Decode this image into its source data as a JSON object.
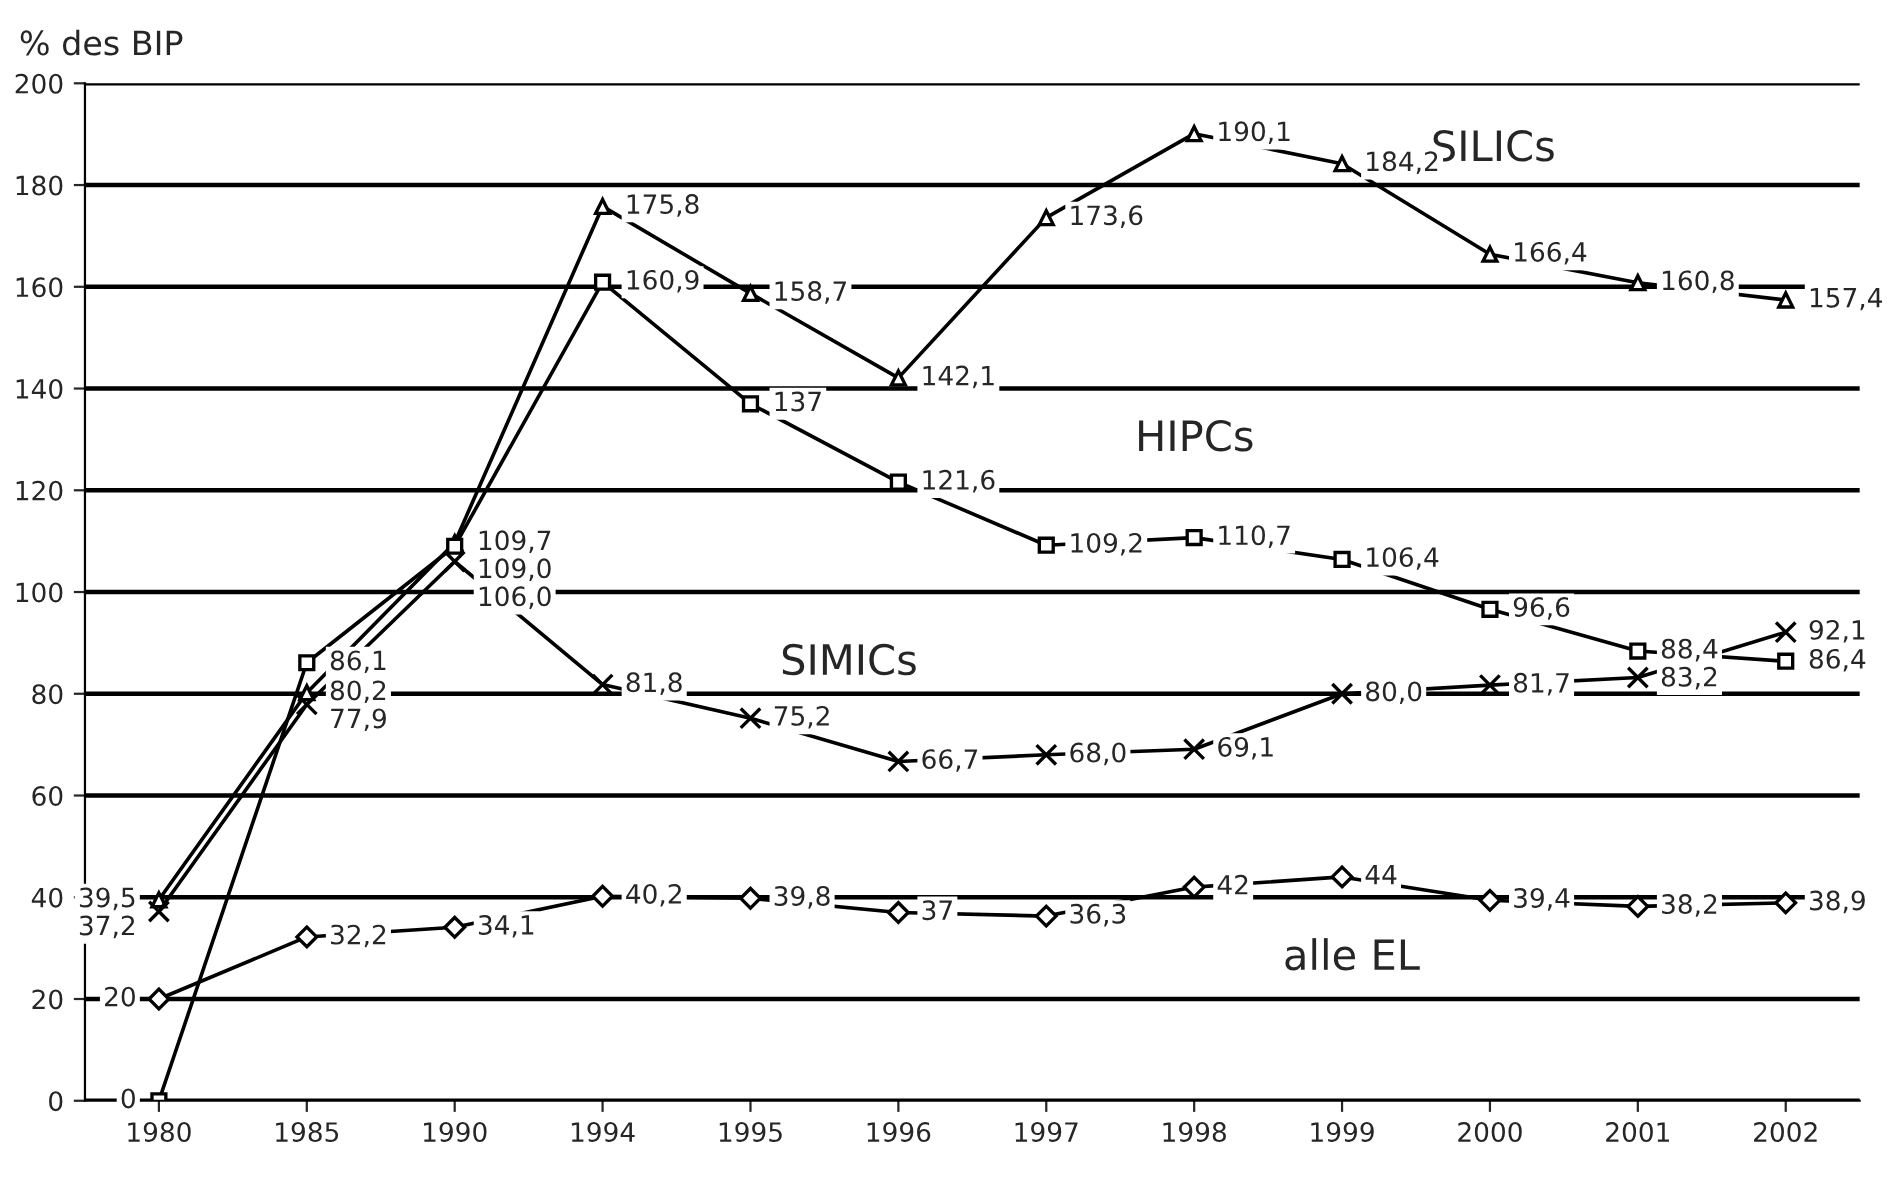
{
  "chart_data": {
    "type": "line",
    "ylabel": "% des BIP",
    "categories": [
      "1980",
      "1985",
      "1990",
      "1994",
      "1995",
      "1996",
      "1997",
      "1998",
      "1999",
      "2000",
      "2001",
      "2002"
    ],
    "ylim": [
      0,
      200
    ],
    "yticks": [
      0,
      20,
      40,
      60,
      80,
      100,
      120,
      140,
      160,
      180,
      200
    ],
    "grid": "y",
    "legend": false,
    "series": [
      {
        "name": "SILICs",
        "color": "#000000",
        "marker": "triangle",
        "values": [
          39.5,
          80.2,
          109.7,
          175.8,
          158.7,
          142.1,
          173.6,
          190.1,
          184.2,
          166.4,
          160.8,
          157.4
        ],
        "value_labels": [
          "39,5",
          "80,2",
          "109,7",
          "175,8",
          "158,7",
          "142,1",
          "173,6",
          "190,1",
          "184,2",
          "166,4",
          "160,8",
          "157,4"
        ]
      },
      {
        "name": "HIPCs",
        "color": "#000000",
        "marker": "square",
        "values": [
          0,
          86.1,
          109.0,
          160.9,
          137,
          121.6,
          109.2,
          110.7,
          106.4,
          96.6,
          88.4,
          86.4
        ],
        "value_labels": [
          "0",
          "86,1",
          "109,0",
          "160,9",
          "137",
          "121,6",
          "109,2",
          "110,7",
          "106,4",
          "96,6",
          "88,4",
          "86,4"
        ]
      },
      {
        "name": "SIMICs",
        "color": "#000000",
        "marker": "cross",
        "values": [
          37.2,
          77.9,
          106.0,
          81.8,
          75.2,
          66.7,
          68.0,
          69.1,
          80.0,
          81.7,
          83.2,
          92.1
        ],
        "value_labels": [
          "37,2",
          "77,9",
          "106,0",
          "81,8",
          "75,2",
          "66,7",
          "68,0",
          "69,1",
          "80,0",
          "81,7",
          "83,2",
          "92,1"
        ]
      },
      {
        "name": "alle EL",
        "color": "#000000",
        "marker": "diamond",
        "values": [
          20,
          32.2,
          34.1,
          40.2,
          39.8,
          37,
          36.3,
          42,
          44,
          39.4,
          38.2,
          38.9
        ],
        "value_labels": [
          "20",
          "32,2",
          "34,1",
          "40,2",
          "39,8",
          "37",
          "36,3",
          "42",
          "44",
          "39,4",
          "38,2",
          "38,9"
        ]
      }
    ]
  }
}
